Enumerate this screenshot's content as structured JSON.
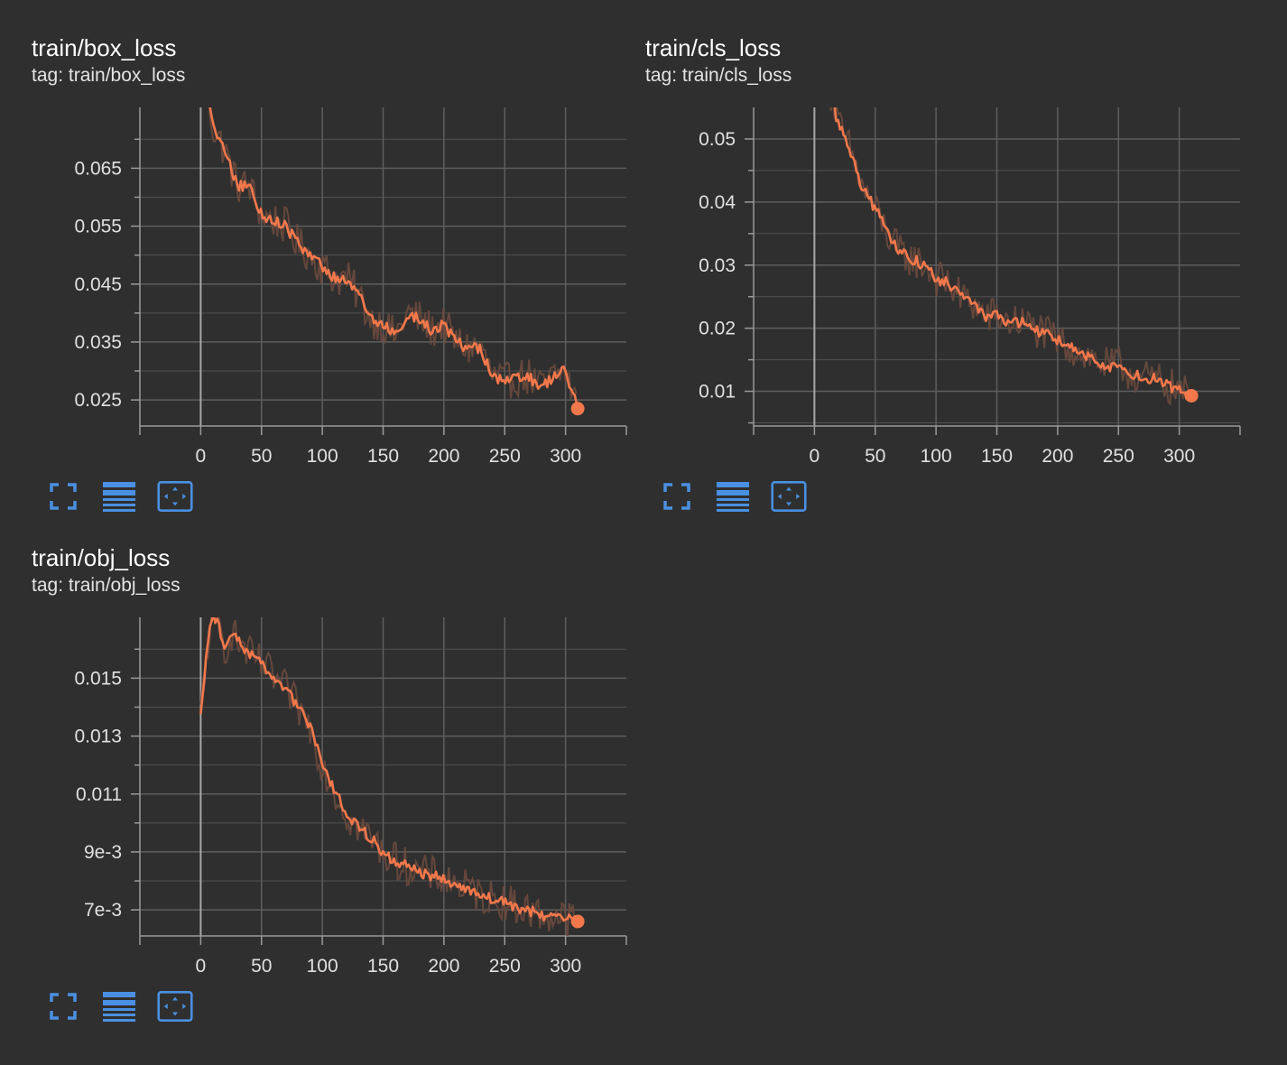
{
  "theme": {
    "background": "#2f2f2f",
    "line_color": "#f2784b",
    "raw_color": "#6b4a3e",
    "grid_color": "#5e5e5e",
    "axis_color": "#9a9a9a",
    "icon_color": "#4a90e2"
  },
  "toolbar_icons": [
    "fullscreen-icon",
    "data-table-icon",
    "fit-domain-icon"
  ],
  "cards": [
    {
      "title": "train/box_loss",
      "tag": "tag: train/box_loss",
      "chart_data": {
        "type": "line",
        "title": "train/box_loss",
        "xlabel": "",
        "ylabel": "",
        "xlim": [
          -50,
          350
        ],
        "ylim": [
          0.0205,
          0.0755
        ],
        "x_ticks": [
          0,
          50,
          100,
          150,
          200,
          250,
          300
        ],
        "y_ticks": [
          0.025,
          0.035,
          0.045,
          0.055,
          0.065
        ],
        "y_tick_labels": [
          "0.025",
          "0.035",
          "0.045",
          "0.055",
          "0.065"
        ],
        "grid": true,
        "series": [
          {
            "x": [
              0,
              10,
              20,
              30,
              40,
              50,
              60,
              70,
              80,
              90,
              100,
              110,
              120,
              130,
              140,
              150,
              160,
              170,
              180,
              190,
              200,
              210,
              220,
              230,
              240,
              250,
              260,
              270,
              280,
              290,
              300,
              310
            ],
            "y": [
              0.086,
              0.072,
              0.068,
              0.062,
              0.062,
              0.057,
              0.056,
              0.055,
              0.052,
              0.05,
              0.048,
              0.046,
              0.046,
              0.043,
              0.039,
              0.038,
              0.036,
              0.04,
              0.039,
              0.037,
              0.038,
              0.035,
              0.034,
              0.034,
              0.029,
              0.028,
              0.029,
              0.029,
              0.027,
              0.029,
              0.03,
              0.0235
            ]
          }
        ]
      }
    },
    {
      "title": "train/cls_loss",
      "tag": "tag: train/cls_loss",
      "chart_data": {
        "type": "line",
        "title": "train/cls_loss",
        "xlabel": "",
        "ylabel": "",
        "xlim": [
          -50,
          350
        ],
        "ylim": [
          0.0045,
          0.055
        ],
        "x_ticks": [
          0,
          50,
          100,
          150,
          200,
          250,
          300
        ],
        "y_ticks": [
          0.01,
          0.02,
          0.03,
          0.04,
          0.05
        ],
        "y_tick_labels": [
          "0.01",
          "0.02",
          "0.03",
          "0.04",
          "0.05"
        ],
        "grid": true,
        "series": [
          {
            "x": [
              0,
              10,
              20,
              30,
              40,
              50,
              60,
              70,
              80,
              90,
              100,
              110,
              120,
              130,
              140,
              150,
              160,
              170,
              180,
              190,
              200,
              210,
              220,
              230,
              240,
              250,
              260,
              270,
              280,
              290,
              300,
              310
            ],
            "y": [
              0.09,
              0.06,
              0.052,
              0.048,
              0.042,
              0.039,
              0.035,
              0.032,
              0.031,
              0.03,
              0.028,
              0.027,
              0.025,
              0.024,
              0.022,
              0.022,
              0.021,
              0.021,
              0.02,
              0.019,
              0.018,
              0.017,
              0.016,
              0.015,
              0.014,
              0.014,
              0.013,
              0.012,
              0.012,
              0.011,
              0.01,
              0.0093
            ]
          }
        ]
      }
    },
    {
      "title": "train/obj_loss",
      "tag": "tag: train/obj_loss",
      "chart_data": {
        "type": "line",
        "title": "train/obj_loss",
        "xlabel": "",
        "ylabel": "",
        "xlim": [
          -50,
          350
        ],
        "ylim": [
          0.0061,
          0.0171
        ],
        "x_ticks": [
          0,
          50,
          100,
          150,
          200,
          250,
          300
        ],
        "y_ticks": [
          0.007,
          0.009,
          0.011,
          0.013,
          0.015
        ],
        "y_tick_labels": [
          "7e-3",
          "9e-3",
          "0.011",
          "0.013",
          "0.015"
        ],
        "grid": true,
        "series": [
          {
            "x": [
              0,
              5,
              10,
              15,
              20,
              25,
              30,
              40,
              50,
              60,
              70,
              80,
              90,
              100,
              110,
              120,
              130,
              140,
              150,
              160,
              170,
              180,
              190,
              200,
              210,
              220,
              230,
              240,
              250,
              260,
              270,
              280,
              290,
              300,
              310
            ],
            "y": [
              0.0137,
              0.016,
              0.0172,
              0.0168,
              0.016,
              0.0166,
              0.0163,
              0.0158,
              0.0155,
              0.015,
              0.0146,
              0.014,
              0.0133,
              0.012,
              0.0111,
              0.0103,
              0.0098,
              0.0095,
              0.009,
              0.0087,
              0.0085,
              0.0083,
              0.0082,
              0.0081,
              0.0079,
              0.0077,
              0.0075,
              0.0074,
              0.0073,
              0.0071,
              0.007,
              0.0068,
              0.0068,
              0.0067,
              0.0066
            ]
          }
        ]
      }
    }
  ]
}
